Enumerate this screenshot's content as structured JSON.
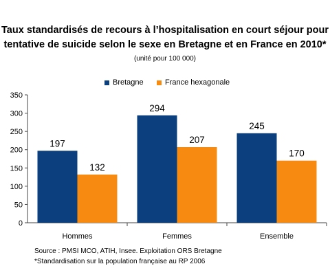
{
  "title_line1": "Taux standardisés de recours à l’hospitalisation en court séjour pour",
  "title_line2": "tentative de suicide selon le sexe en Bretagne et en France en 2010*",
  "unit_note": "(unité pour 100 000)",
  "footnotes": {
    "source": "Source : PMSI MCO, ATIH, Insee. Exploitation ORS Bretagne",
    "note": "*Standardisation sur la population française au RP 2006"
  },
  "colors": {
    "bretagne": "#0b3f7e",
    "france": "#f78b12"
  },
  "chart_data": {
    "type": "bar",
    "title": "Taux standardisés de recours à l’hospitalisation en court séjour pour tentative de suicide selon le sexe en Bretagne et en France en 2010*",
    "categories": [
      "Hommes",
      "Femmes",
      "Ensemble"
    ],
    "series": [
      {
        "name": "Bretagne",
        "values": [
          197,
          294,
          245
        ]
      },
      {
        "name": "France hexagonale",
        "values": [
          132,
          207,
          170
        ]
      }
    ],
    "ylim": [
      0,
      350
    ],
    "yticks": [
      "0",
      "50",
      "100",
      "150",
      "200",
      "250",
      "300",
      "350"
    ],
    "grid": false,
    "legend_position": "top"
  }
}
